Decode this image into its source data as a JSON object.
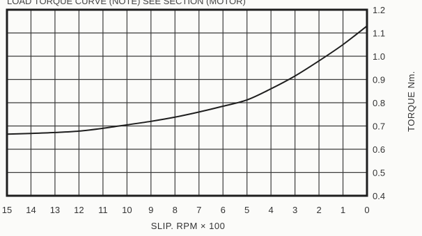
{
  "chart_data": {
    "type": "line",
    "title": "",
    "cut_header": "LOAD TORQUE CURVE (NOTE) SEE SECTION (MOTOR)",
    "xlabel": "SLIP. RPM × 100",
    "ylabel": "TORQUE Nm.",
    "x_ticks": [
      "15",
      "14",
      "13",
      "12",
      "11",
      "10",
      "9",
      "8",
      "7",
      "6",
      "5",
      "4",
      "3",
      "2",
      "1",
      "0"
    ],
    "y_ticks": [
      "0.4",
      "0.5",
      "0.6",
      "0.7",
      "0.8",
      "0.9",
      "1.0",
      "1.1",
      "1.2"
    ],
    "xlim": [
      15,
      0
    ],
    "ylim": [
      0.4,
      1.2
    ],
    "grid": true,
    "series": [
      {
        "x": [
          15,
          14,
          13,
          12,
          11,
          10,
          9,
          8,
          7,
          6,
          5,
          4,
          3,
          2,
          1,
          0
        ],
        "y": [
          0.665,
          0.668,
          0.672,
          0.678,
          0.69,
          0.705,
          0.72,
          0.738,
          0.76,
          0.785,
          0.812,
          0.86,
          0.915,
          0.98,
          1.05,
          1.13
        ]
      }
    ]
  }
}
